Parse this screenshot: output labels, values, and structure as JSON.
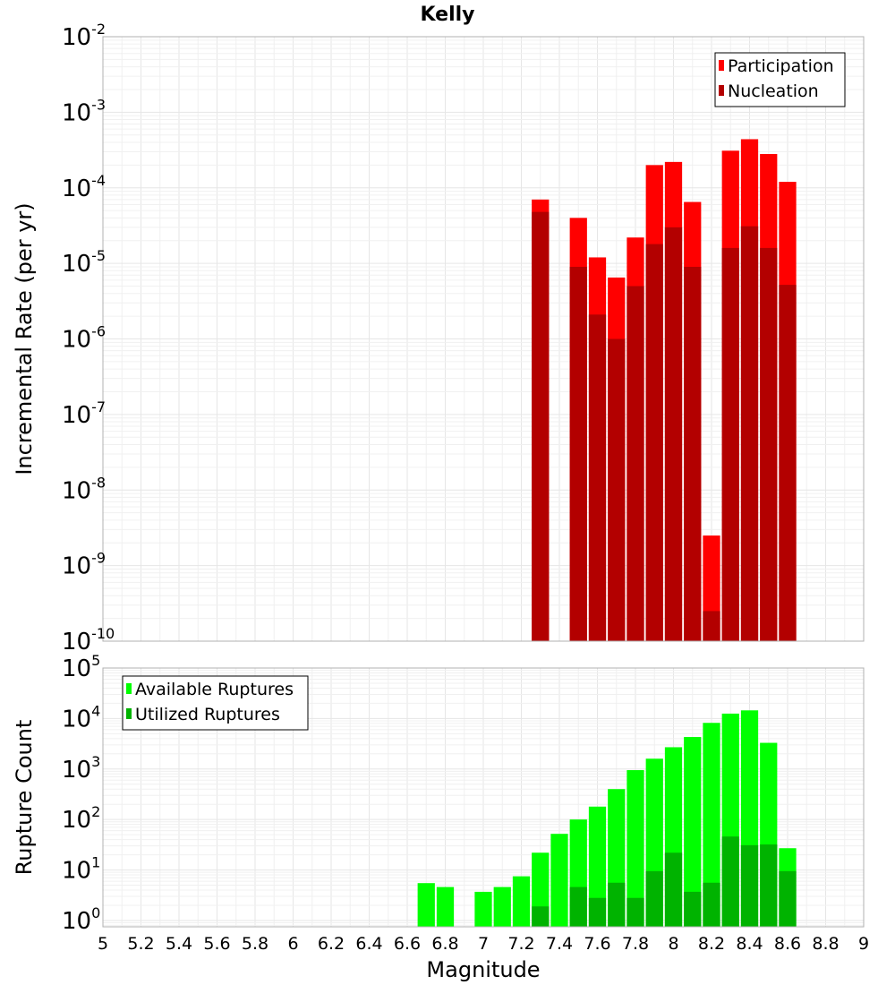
{
  "title": "Kelly",
  "colors": {
    "participation": "#ff0000",
    "nucleation": "#b30000",
    "available": "#00ff00",
    "utilized": "#00b300",
    "grid_major": "#e6e6e6",
    "grid_minor": "#f0f0f0",
    "frame": "#b0b0b0"
  },
  "chart_data": [
    {
      "type": "bar",
      "xlabel": "",
      "ylabel": "Incremental Rate (per yr)",
      "yscale": "log",
      "ylim": [
        1e-10,
        0.01
      ],
      "xlim": [
        5,
        9
      ],
      "grid": true,
      "legend_position": "top-right",
      "y_tick_exponents": [
        "-2",
        "-3",
        "-4",
        "-5",
        "-6",
        "-7",
        "-8",
        "-9",
        "-10"
      ],
      "series": [
        {
          "name": "Participation",
          "color": "#ff0000",
          "x": [
            7.3,
            7.5,
            7.6,
            7.7,
            7.8,
            7.9,
            8.0,
            8.1,
            8.2,
            8.3,
            8.4,
            8.5,
            8.6
          ],
          "values": [
            7e-05,
            4e-05,
            1.2e-05,
            6.5e-06,
            2.2e-05,
            0.0002,
            0.00022,
            6.5e-05,
            2.5e-09,
            0.00031,
            0.00044,
            0.00028,
            0.00012
          ]
        },
        {
          "name": "Nucleation",
          "color": "#b30000",
          "x": [
            7.3,
            7.5,
            7.6,
            7.7,
            7.8,
            7.9,
            8.0,
            8.1,
            8.2,
            8.3,
            8.4,
            8.5,
            8.6
          ],
          "values": [
            4.8e-05,
            9e-06,
            2.1e-06,
            1e-06,
            5e-06,
            1.8e-05,
            3e-05,
            9e-06,
            2.5e-10,
            1.6e-05,
            3.1e-05,
            1.6e-05,
            5.2e-06
          ]
        }
      ]
    },
    {
      "type": "bar",
      "xlabel": "Magnitude",
      "ylabel": "Rupture Count",
      "yscale": "log",
      "ylim": [
        0.75,
        100000.0
      ],
      "xlim": [
        5,
        9
      ],
      "grid": true,
      "legend_position": "top-left",
      "y_tick_exponents": [
        "5",
        "4",
        "3",
        "2",
        "1",
        "0"
      ],
      "x_ticks": [
        "5",
        "5.2",
        "5.4",
        "5.6",
        "5.8",
        "6",
        "6.2",
        "6.4",
        "6.6",
        "6.8",
        "7",
        "7.2",
        "7.4",
        "7.6",
        "7.8",
        "8",
        "8.2",
        "8.4",
        "8.6",
        "8.8",
        "9"
      ],
      "series": [
        {
          "name": "Available Ruptures",
          "color": "#00ff00",
          "x": [
            6.7,
            6.8,
            7.0,
            7.1,
            7.2,
            7.3,
            7.4,
            7.5,
            7.6,
            7.7,
            7.8,
            7.9,
            8.0,
            8.1,
            8.2,
            8.3,
            8.4,
            8.5,
            8.6
          ],
          "values": [
            5.5,
            4.6,
            3.7,
            4.6,
            7.5,
            22,
            52,
            100,
            180,
            400,
            950,
            1600,
            2700,
            4300,
            8200,
            12500,
            14500,
            3300,
            27
          ]
        },
        {
          "name": "Utilized Ruptures",
          "color": "#00b300",
          "x": [
            7.3,
            7.5,
            7.6,
            7.7,
            7.8,
            7.9,
            8.0,
            8.1,
            8.2,
            8.3,
            8.4,
            8.5,
            8.6
          ],
          "values": [
            1.9,
            4.6,
            2.8,
            5.6,
            2.8,
            9.5,
            22,
            3.7,
            5.6,
            46,
            31,
            32,
            9.5
          ]
        }
      ]
    }
  ]
}
